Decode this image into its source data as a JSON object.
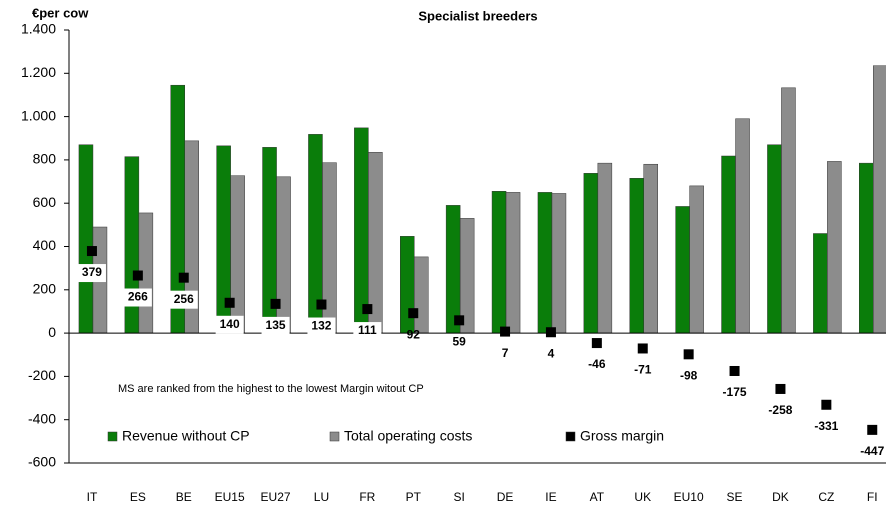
{
  "chart_data": {
    "type": "bar",
    "title": "Specialist breeders",
    "y_label": "€per cow",
    "annotation": "MS are ranked from the highest to the lowest Margin witout CP",
    "categories": [
      "IT",
      "ES",
      "BE",
      "EU15",
      "EU27",
      "LU",
      "FR",
      "PT",
      "SI",
      "DE",
      "IE",
      "AT",
      "UK",
      "EU10",
      "SE",
      "DK",
      "CZ",
      "FI"
    ],
    "series": [
      {
        "name": "Revenue without CP",
        "color": "#0a7d0a",
        "mark": "bar",
        "values": [
          870,
          815,
          1145,
          865,
          858,
          918,
          948,
          447,
          590,
          655,
          650,
          738,
          715,
          585,
          818,
          870,
          460,
          785
        ]
      },
      {
        "name": "Total operating costs",
        "color": "#8c8c8c",
        "mark": "bar",
        "values": [
          490,
          555,
          888,
          727,
          722,
          787,
          835,
          352,
          530,
          650,
          645,
          785,
          780,
          680,
          990,
          1133,
          793,
          1235
        ]
      },
      {
        "name": "Gross margin",
        "color": "#000000",
        "mark": "square",
        "values": [
          379,
          266,
          256,
          140,
          135,
          132,
          111,
          92,
          59,
          7,
          4,
          -46,
          -71,
          -98,
          -175,
          -258,
          -331,
          -447
        ]
      }
    ],
    "ylim": [
      -600,
      1400
    ],
    "yticks": [
      -600,
      -400,
      -200,
      0,
      200,
      400,
      600,
      800,
      {
        "value": 1000,
        "label": "1.000"
      },
      {
        "value": 1200,
        "label": "1.200"
      },
      {
        "value": 1400,
        "label": "1.400"
      }
    ],
    "legend": "bottom-left"
  }
}
